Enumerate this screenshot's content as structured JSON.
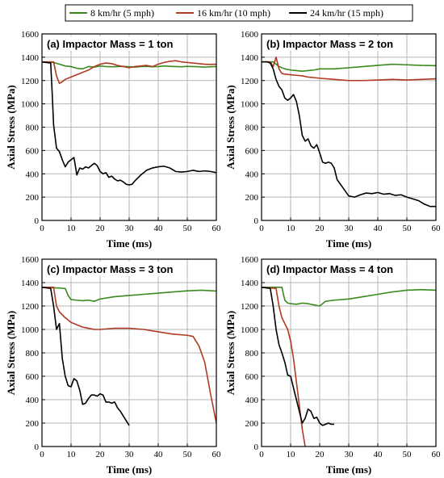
{
  "legend": {
    "items": [
      {
        "label": "8 km/hr (5 mph)",
        "color": "#3a8a1e"
      },
      {
        "label": "16 km/hr (10 mph)",
        "color": "#b03a22"
      },
      {
        "label": "24 km/hr (15 mph)",
        "color": "#000000"
      }
    ]
  },
  "chart_data": [
    {
      "type": "line",
      "title": "(a) Impactor Mass = 1 ton",
      "xlabel": "Time (ms)",
      "ylabel": "Axial Stress (MPa)",
      "xlim": [
        0,
        60
      ],
      "ylim": [
        0,
        1600
      ],
      "xticks": [
        0,
        10,
        20,
        30,
        40,
        50,
        60
      ],
      "yticks": [
        0,
        200,
        400,
        600,
        800,
        1000,
        1200,
        1400,
        1600
      ],
      "grid": true,
      "series": [
        {
          "name": "8 km/hr (5 mph)",
          "x": [
            0,
            4,
            6,
            8,
            10,
            12,
            14,
            16,
            18,
            20,
            22,
            24,
            26,
            28,
            30,
            32,
            34,
            36,
            38,
            40,
            42,
            44,
            46,
            48,
            50,
            52,
            54,
            56,
            58,
            60
          ],
          "y": [
            1360,
            1355,
            1340,
            1325,
            1320,
            1305,
            1300,
            1320,
            1315,
            1325,
            1320,
            1318,
            1320,
            1322,
            1318,
            1315,
            1320,
            1322,
            1318,
            1320,
            1325,
            1322,
            1320,
            1318,
            1322,
            1320,
            1318,
            1315,
            1318,
            1320
          ]
        },
        {
          "name": "16 km/hr (10 mph)",
          "x": [
            0,
            4,
            5,
            6,
            7,
            8,
            10,
            12,
            14,
            16,
            18,
            20,
            22,
            24,
            26,
            28,
            30,
            32,
            34,
            36,
            38,
            40,
            42,
            44,
            46,
            48,
            50,
            52,
            54,
            56,
            58,
            60
          ],
          "y": [
            1360,
            1360,
            1240,
            1175,
            1190,
            1210,
            1230,
            1250,
            1270,
            1290,
            1320,
            1340,
            1350,
            1345,
            1330,
            1320,
            1310,
            1320,
            1325,
            1330,
            1320,
            1340,
            1355,
            1365,
            1370,
            1360,
            1355,
            1350,
            1345,
            1340,
            1338,
            1340
          ]
        },
        {
          "name": "24 km/hr (15 mph)",
          "x": [
            0,
            3,
            3.5,
            4,
            5,
            6,
            7,
            8,
            9,
            10,
            11,
            12,
            13,
            14,
            15,
            16,
            17,
            18,
            19,
            20,
            21,
            22,
            23,
            24,
            25,
            26,
            27,
            28,
            29,
            30,
            31,
            32,
            34,
            36,
            38,
            40,
            42,
            44,
            46,
            48,
            50,
            52,
            54,
            56,
            58,
            60
          ],
          "y": [
            1360,
            1350,
            1100,
            820,
            620,
            590,
            520,
            460,
            500,
            520,
            540,
            390,
            450,
            440,
            460,
            450,
            470,
            490,
            470,
            420,
            400,
            410,
            370,
            380,
            355,
            340,
            345,
            330,
            310,
            305,
            310,
            340,
            390,
            430,
            450,
            460,
            465,
            450,
            420,
            415,
            420,
            430,
            420,
            425,
            420,
            410
          ]
        }
      ]
    },
    {
      "type": "line",
      "title": "(b) Impactor Mass = 2 ton",
      "xlabel": "Time (ms)",
      "ylabel": "Axial Stress (MPa)",
      "xlim": [
        0,
        60
      ],
      "ylim": [
        0,
        1600
      ],
      "xticks": [
        0,
        10,
        20,
        30,
        40,
        50,
        60
      ],
      "yticks": [
        0,
        200,
        400,
        600,
        800,
        1000,
        1200,
        1400,
        1600
      ],
      "grid": true,
      "series": [
        {
          "name": "8 km/hr (5 mph)",
          "x": [
            0,
            4,
            6,
            8,
            10,
            12,
            14,
            16,
            18,
            20,
            25,
            30,
            35,
            40,
            45,
            50,
            55,
            60
          ],
          "y": [
            1360,
            1360,
            1320,
            1300,
            1290,
            1285,
            1280,
            1285,
            1290,
            1300,
            1300,
            1310,
            1320,
            1330,
            1340,
            1335,
            1330,
            1328
          ]
        },
        {
          "name": "16 km/hr (10 mph)",
          "x": [
            0,
            3,
            4,
            5,
            6,
            7,
            8,
            10,
            12,
            14,
            16,
            18,
            20,
            25,
            30,
            35,
            40,
            45,
            50,
            55,
            60
          ],
          "y": [
            1360,
            1360,
            1320,
            1400,
            1300,
            1260,
            1255,
            1250,
            1245,
            1240,
            1230,
            1225,
            1220,
            1210,
            1200,
            1200,
            1205,
            1210,
            1205,
            1210,
            1215
          ]
        },
        {
          "name": "24 km/hr (15 mph)",
          "x": [
            0,
            2,
            3,
            4,
            5,
            6,
            7,
            8,
            9,
            10,
            11,
            12,
            13,
            14,
            15,
            16,
            17,
            18,
            19,
            20,
            21,
            22,
            23,
            24,
            25,
            26,
            28,
            30,
            32,
            34,
            36,
            38,
            40,
            42,
            44,
            46,
            48,
            50,
            52,
            54,
            56,
            58,
            60
          ],
          "y": [
            1360,
            1360,
            1350,
            1300,
            1210,
            1150,
            1120,
            1050,
            1030,
            1050,
            1080,
            1020,
            900,
            730,
            680,
            700,
            640,
            620,
            650,
            580,
            500,
            490,
            500,
            490,
            450,
            350,
            280,
            210,
            200,
            220,
            235,
            230,
            240,
            225,
            230,
            215,
            220,
            200,
            185,
            170,
            140,
            120,
            120
          ]
        }
      ]
    },
    {
      "type": "line",
      "title": "(c) Impactor Mass = 3 ton",
      "xlabel": "Time (ms)",
      "ylabel": "Axial Stress (MPa)",
      "xlim": [
        0,
        60
      ],
      "ylim": [
        0,
        1600
      ],
      "xticks": [
        0,
        10,
        20,
        30,
        40,
        50,
        60
      ],
      "yticks": [
        0,
        200,
        400,
        600,
        800,
        1000,
        1200,
        1400,
        1600
      ],
      "grid": true,
      "series": [
        {
          "name": "8 km/hr (5 mph)",
          "x": [
            0,
            5,
            8,
            9,
            10,
            12,
            14,
            16,
            18,
            20,
            25,
            30,
            35,
            40,
            45,
            50,
            55,
            60
          ],
          "y": [
            1360,
            1355,
            1350,
            1290,
            1255,
            1250,
            1245,
            1250,
            1240,
            1260,
            1280,
            1290,
            1300,
            1310,
            1320,
            1330,
            1335,
            1328
          ]
        },
        {
          "name": "16 km/hr (10 mph)",
          "x": [
            0,
            4,
            5,
            6,
            8,
            10,
            12,
            14,
            16,
            18,
            20,
            25,
            30,
            35,
            40,
            45,
            50,
            52,
            54,
            56,
            58,
            60
          ],
          "y": [
            1360,
            1360,
            1200,
            1150,
            1100,
            1060,
            1040,
            1020,
            1010,
            1000,
            1000,
            1010,
            1010,
            1000,
            980,
            960,
            950,
            940,
            860,
            720,
            450,
            200
          ]
        },
        {
          "name": "24 km/hr (15 mph)",
          "x": [
            0,
            3,
            4,
            5,
            6,
            7,
            8,
            9,
            10,
            11,
            12,
            13,
            14,
            15,
            16,
            17,
            18,
            19,
            20,
            21,
            22,
            23,
            24,
            25,
            26,
            27,
            28,
            29,
            30
          ],
          "y": [
            1360,
            1350,
            1200,
            1000,
            1050,
            750,
            600,
            520,
            510,
            580,
            560,
            480,
            360,
            370,
            410,
            440,
            440,
            430,
            450,
            440,
            380,
            380,
            370,
            380,
            330,
            300,
            260,
            220,
            180
          ]
        }
      ]
    },
    {
      "type": "line",
      "title": "(d) Impactor Mass = 4 ton",
      "xlabel": "Time (ms)",
      "ylabel": "Axial Stress (MPa)",
      "xlim": [
        0,
        60
      ],
      "ylim": [
        0,
        1600
      ],
      "xticks": [
        0,
        10,
        20,
        30,
        40,
        50,
        60
      ],
      "yticks": [
        0,
        200,
        400,
        600,
        800,
        1000,
        1200,
        1400,
        1600
      ],
      "grid": true,
      "series": [
        {
          "name": "8 km/hr (5 mph)",
          "x": [
            0,
            5,
            7,
            8,
            9,
            10,
            12,
            14,
            16,
            18,
            20,
            22,
            25,
            30,
            35,
            40,
            45,
            50,
            55,
            60
          ],
          "y": [
            1360,
            1360,
            1360,
            1250,
            1225,
            1220,
            1215,
            1225,
            1220,
            1210,
            1200,
            1240,
            1250,
            1260,
            1280,
            1300,
            1320,
            1335,
            1340,
            1335
          ]
        },
        {
          "name": "16 km/hr (10 mph)",
          "x": [
            0,
            5,
            6,
            7,
            8,
            9,
            10,
            11,
            12,
            13,
            14,
            15
          ],
          "y": [
            1360,
            1350,
            1200,
            1100,
            1050,
            1000,
            900,
            750,
            550,
            350,
            150,
            0
          ]
        },
        {
          "name": "24 km/hr (15 mph)",
          "x": [
            0,
            3,
            4,
            5,
            6,
            7,
            8,
            9,
            10,
            11,
            12,
            13,
            14,
            15,
            16,
            17,
            18,
            19,
            20,
            21,
            22,
            23,
            24,
            25
          ],
          "y": [
            1360,
            1350,
            1200,
            1000,
            870,
            800,
            720,
            610,
            600,
            500,
            400,
            300,
            200,
            240,
            320,
            300,
            240,
            250,
            200,
            180,
            190,
            200,
            190,
            190
          ]
        }
      ]
    }
  ]
}
